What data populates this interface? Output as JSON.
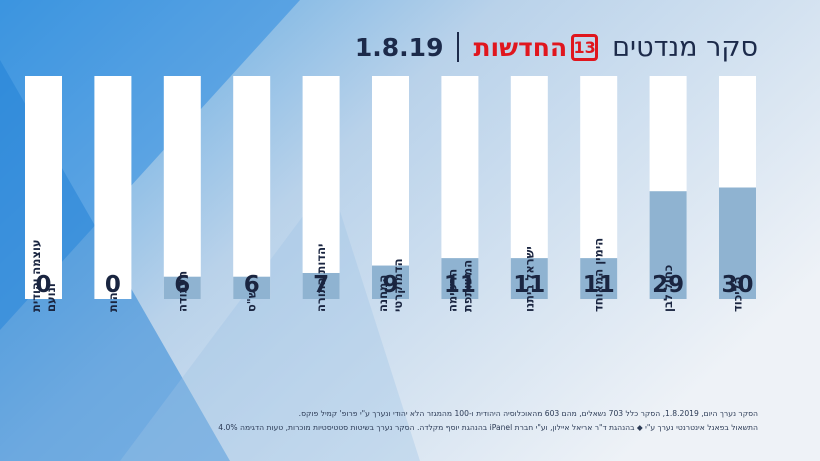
{
  "header": {
    "title": "סקר מנדטים",
    "logo_text": "החדשות",
    "logo_number": "13",
    "separator": "|",
    "date": "1.8.19"
  },
  "colors": {
    "bar_background": "#ffffff",
    "bar_fill": "#8fb3d1",
    "value_text": "#1a2540",
    "label_text": "#1a2540",
    "accent_red": "#e0161e"
  },
  "chart_data": {
    "type": "bar",
    "title": "סקר מנדטים",
    "ylim": [
      0,
      60
    ],
    "categories": [
      "הליכוד",
      "כחול לבן",
      "הימין המאוחד",
      "ישראל ביתנו",
      "הרשימה המשותפת",
      "המחנה הדמוקרטי",
      "יהדות התורה",
      "ש\"ס",
      "העבודה",
      "זהות",
      "עוצמה יהודית ונועם"
    ],
    "values": [
      30,
      29,
      11,
      11,
      11,
      9,
      7,
      6,
      6,
      0,
      0
    ],
    "labels": [
      [
        "הליכוד"
      ],
      [
        "כחול לבן"
      ],
      [
        "הימין המאוחד"
      ],
      [
        "ישראל ביתנו"
      ],
      [
        "הרשימה",
        "המשותפת"
      ],
      [
        "המחנה",
        "הדמוקרטי"
      ],
      [
        "יהדות התורה"
      ],
      [
        "ש\"ס"
      ],
      [
        "העבודה"
      ],
      [
        "זהות"
      ],
      [
        "עוצמה יהודית",
        "ונועם"
      ]
    ]
  },
  "footer": {
    "line1": "הסקר נערך היום, 1.8.2019, הסקר כלל 703 נשאלים, מהם 603 מהאוכלוסיה היהודית ו-100 מהמגזר הלא יהודי ונערך ע\"י פרופ' קמיל פוקס.",
    "line2": "התשאול בפאנל אינטרנטי נערך ע\"י ◆ בהנהגת ד\"ר אריאל איילון, וע\"י חברת iPanel בהנהגת יוסף מקלדה. הסקר נערך בשיטות סטטיסטיות מוכרות, טעות הדגימה 4.0%"
  }
}
